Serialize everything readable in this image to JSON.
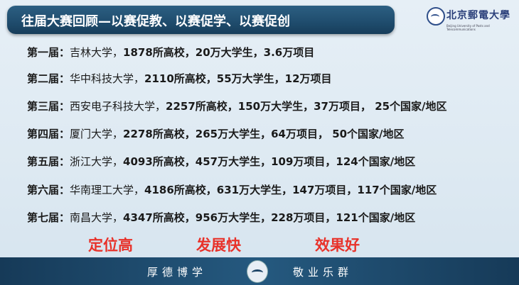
{
  "header": {
    "title": "往届大赛回顾—以赛促教、以赛促学、以赛促创",
    "logo_text": "北京郵電大學",
    "logo_subtext": "Beijing University of Posts and Telecommunications"
  },
  "rows": [
    {
      "label": "第一届：",
      "school": "吉林大学，",
      "stats": "1878所高校，20万大学生，3.6万项目"
    },
    {
      "label": "第二届：",
      "school": "华中科技大学，",
      "stats": "2110所高校，55万大学生，12万项目"
    },
    {
      "label": "第三届：",
      "school": "西安电子科技大学，",
      "stats": "2257所高校，150万大学生，37万项目， 25个国家/地区"
    },
    {
      "label": "第四届：",
      "school": "厦门大学，",
      "stats": "2278所高校，265万大学生，64万项目， 50个国家/地区"
    },
    {
      "label": "第五届：",
      "school": "浙江大学，",
      "stats": "4093所高校，457万大学生，109万项目，124个国家/地区"
    },
    {
      "label": "第六届：",
      "school": "华南理工大学，",
      "stats": "4186所高校，631万大学生，147万项目，117个国家/地区"
    },
    {
      "label": "第七届：",
      "school": "南昌大学，",
      "stats": "4347所高校，956万大学生，228万项目，121个国家/地区"
    }
  ],
  "slogans": [
    "定位高",
    "发展快",
    "效果好"
  ],
  "footer": {
    "motto_left": "厚德博学",
    "motto_right": "敬业乐群"
  },
  "colors": {
    "title_bar": "#1f4c6d",
    "slogan": "#e8322a",
    "footer": "#1d4466"
  }
}
